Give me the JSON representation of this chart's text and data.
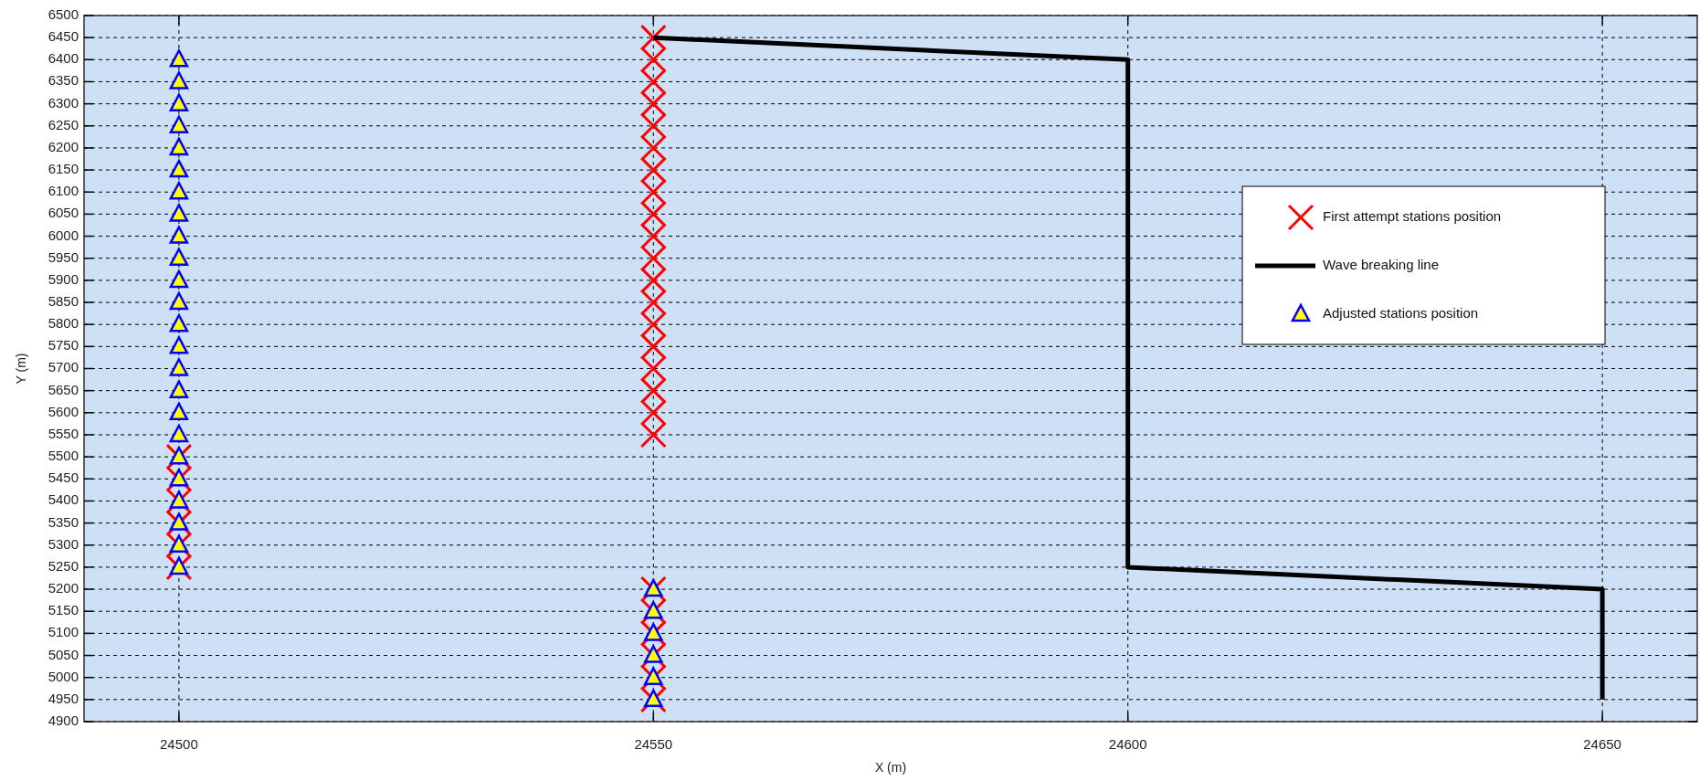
{
  "chart_data": {
    "type": "scatter",
    "xlabel": "X (m)",
    "ylabel": "Y (m)",
    "xlim": [
      24490,
      24660
    ],
    "ylim": [
      4900,
      6500
    ],
    "xticks": [
      24500,
      24550,
      24600,
      24650
    ],
    "yticks": [
      4900,
      4950,
      5000,
      5050,
      5100,
      5150,
      5200,
      5250,
      5300,
      5350,
      5400,
      5450,
      5500,
      5550,
      5600,
      5650,
      5700,
      5750,
      5800,
      5850,
      5900,
      5950,
      6000,
      6050,
      6100,
      6150,
      6200,
      6250,
      6300,
      6350,
      6400,
      6450,
      6500
    ],
    "grid": true,
    "legend": "right",
    "series": [
      {
        "name": "First attempt stations position",
        "marker": "cross",
        "color": "#ff0000",
        "x": [
          24550,
          24550,
          24550,
          24550,
          24550,
          24550,
          24550,
          24550,
          24550,
          24550,
          24550,
          24550,
          24550,
          24550,
          24550,
          24550,
          24550,
          24550,
          24550,
          24500,
          24500,
          24500,
          24500,
          24500,
          24500,
          24550,
          24550,
          24550,
          24550,
          24550,
          24550
        ],
        "values": [
          6450,
          6400,
          6350,
          6300,
          6250,
          6200,
          6150,
          6100,
          6050,
          6000,
          5950,
          5900,
          5850,
          5800,
          5750,
          5700,
          5650,
          5600,
          5550,
          5500,
          5450,
          5400,
          5350,
          5300,
          5250,
          5200,
          5150,
          5100,
          5050,
          5000,
          4950
        ]
      },
      {
        "name": "Wave breaking line",
        "type": "line",
        "marker": "none",
        "line_style": "solid",
        "color": "#000000",
        "x": [
          24550,
          24600,
          24600,
          24650,
          24650
        ],
        "values": [
          6450,
          6400,
          5250,
          5200,
          4950
        ]
      },
      {
        "name": "Adjusted stations position",
        "marker": "triangle",
        "color": "#ffff00",
        "x": [
          24500,
          24500,
          24500,
          24500,
          24500,
          24500,
          24500,
          24500,
          24500,
          24500,
          24500,
          24500,
          24500,
          24500,
          24500,
          24500,
          24500,
          24500,
          24500,
          24500,
          24500,
          24500,
          24500,
          24500,
          24550,
          24550,
          24550,
          24550,
          24550,
          24550
        ],
        "values": [
          6400,
          6350,
          6300,
          6250,
          6200,
          6150,
          6100,
          6050,
          6000,
          5950,
          5900,
          5850,
          5800,
          5750,
          5700,
          5650,
          5600,
          5550,
          5500,
          5450,
          5400,
          5350,
          5300,
          5250,
          5200,
          5150,
          5100,
          5050,
          5000,
          4950
        ]
      }
    ]
  }
}
